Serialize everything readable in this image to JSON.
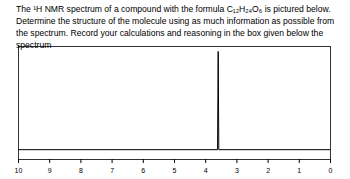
{
  "chart_data": {
    "type": "line",
    "title": "The ¹H NMR spectrum of a compound with the formula C₁₂H₂₄O₆ is pictured below. Determine the structure of the molecule using as much information as possible from the spectrum. Record your calculations and reasoning in the box given below the spectrum",
    "x": [
      10,
      3.62,
      3.6,
      3.58,
      0
    ],
    "values": [
      0,
      0,
      1,
      0,
      0
    ],
    "color": "#000000",
    "xlim": [
      10,
      0
    ],
    "xticks": [
      10,
      9,
      8,
      7,
      6,
      5,
      4,
      3,
      2,
      1,
      0
    ],
    "ylim": [
      -0.1,
      1.05
    ],
    "tick_labels": "x"
  }
}
